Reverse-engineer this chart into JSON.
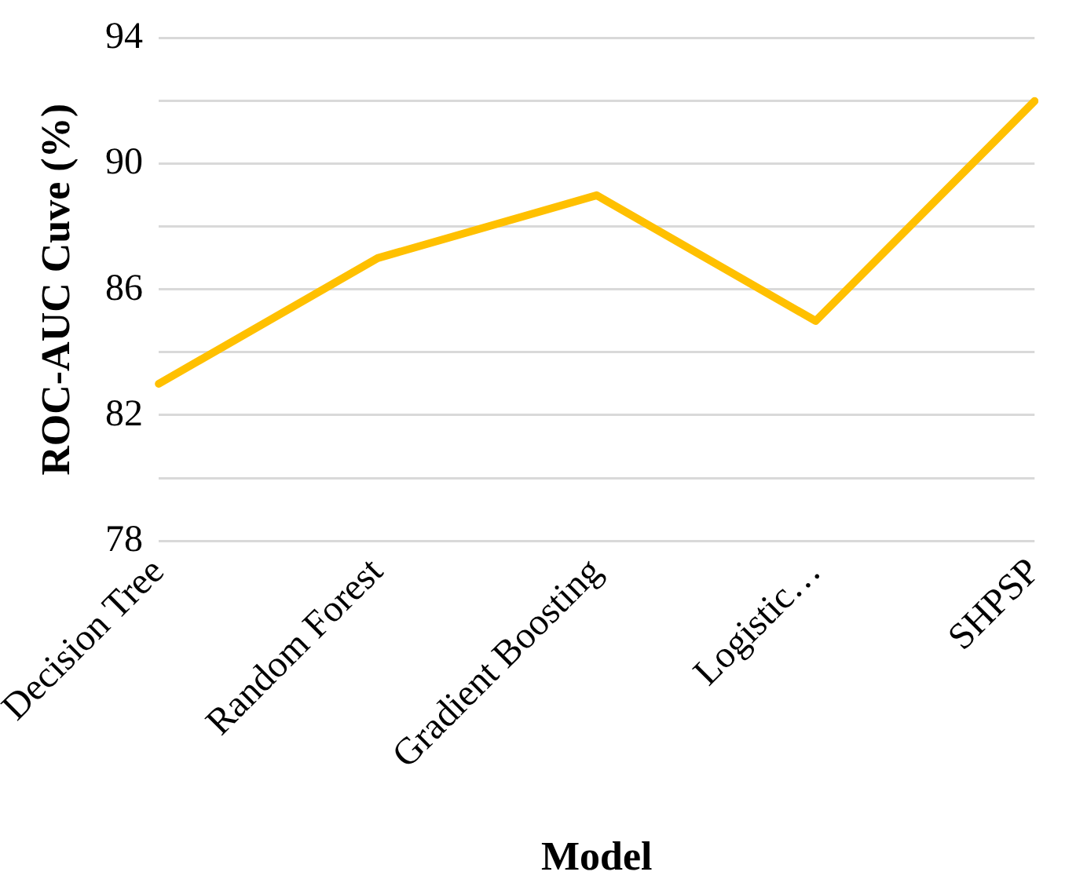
{
  "chart_data": {
    "type": "line",
    "xlabel": "Model",
    "ylabel": "ROC-AUC Cuve (%)",
    "categories": [
      "Decision Tree",
      "Random Forest",
      "Gradient Boosting",
      "Logistic…",
      "SHPSP"
    ],
    "series": [
      {
        "color": "#ffc000",
        "values": [
          83,
          87,
          89,
          85,
          92
        ]
      }
    ],
    "ylim": [
      78,
      94
    ],
    "yticks": [
      78,
      {
        "value": 80,
        "label": null
      },
      82,
      {
        "value": 84,
        "label": null
      },
      86,
      {
        "value": 88,
        "label": null
      },
      90,
      {
        "value": 92,
        "label": null
      },
      94
    ],
    "grid": "y",
    "legend": false,
    "marker": "none",
    "line_style": "solid"
  }
}
